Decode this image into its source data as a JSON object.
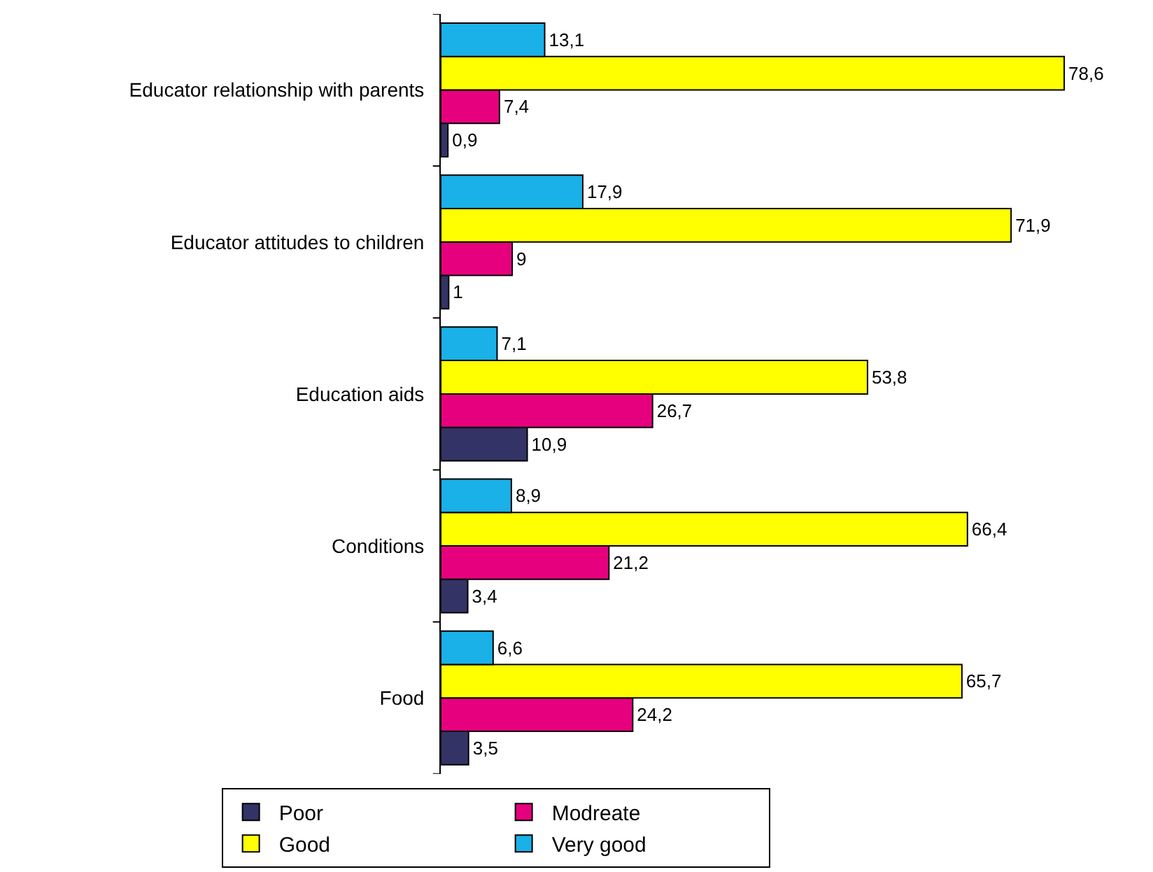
{
  "chart_data": {
    "type": "bar",
    "orientation": "horizontal",
    "categories": [
      "Educator relationship with parents",
      "Educator attitudes to children",
      "Education aids",
      "Conditions",
      "Food"
    ],
    "series": [
      {
        "name": "Poor",
        "color": "#333366",
        "values": [
          0.9,
          1,
          10.9,
          3.4,
          3.5
        ],
        "value_labels": [
          "0,9",
          "1",
          "10,9",
          "3,4",
          "3,5"
        ]
      },
      {
        "name": "Modreate",
        "color": "#e6007e",
        "values": [
          7.4,
          9,
          26.7,
          21.2,
          24.2
        ],
        "value_labels": [
          "7,4",
          "9",
          "26,7",
          "21,2",
          "24,2"
        ]
      },
      {
        "name": "Good",
        "color": "#ffff00",
        "values": [
          78.6,
          71.9,
          53.8,
          66.4,
          65.7
        ],
        "value_labels": [
          "78,6",
          "71,9",
          "53,8",
          "66,4",
          "65,7"
        ]
      },
      {
        "name": "Very good",
        "color": "#1ab0e8",
        "values": [
          13.1,
          17.9,
          7.1,
          8.9,
          6.6
        ],
        "value_labels": [
          "13,1",
          "17,9",
          "7,1",
          "8,9",
          "6,6"
        ]
      }
    ],
    "legend": "bottom"
  }
}
